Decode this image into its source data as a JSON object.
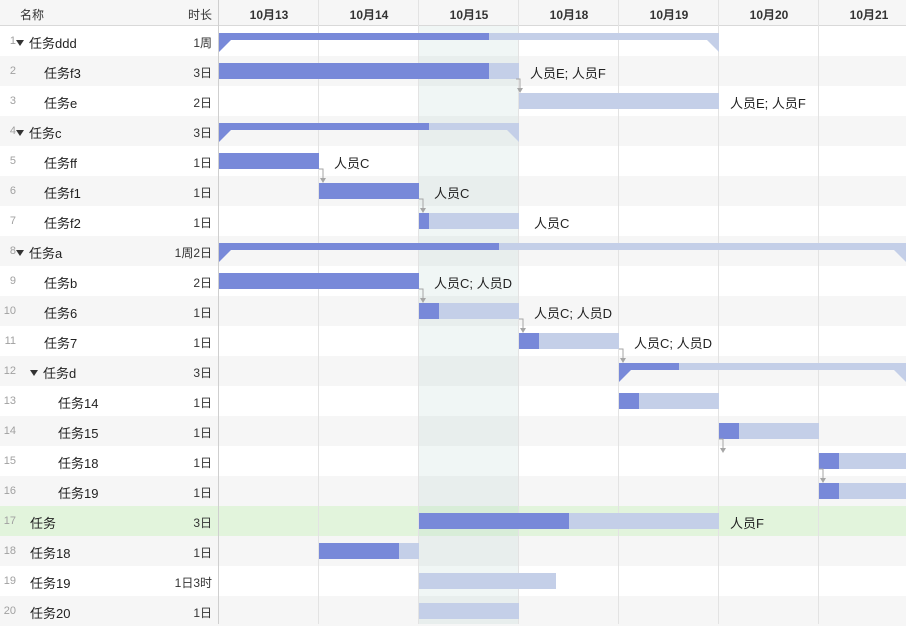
{
  "header": {
    "name_label": "名称",
    "duration_label": "时长",
    "days": [
      "10月13",
      "10月14",
      "10月15",
      "10月18",
      "10月19",
      "10月20",
      "10月21"
    ]
  },
  "colors": {
    "bar_done": "#7889d9",
    "bar_todo": "#c4cfe8",
    "row_alt": "#f6f6f6",
    "row_highlight": "#e2f4dc",
    "today_column": "#e8f2f0",
    "dependency_line": "#a6a6a6"
  },
  "tasks": [
    {
      "num": "1",
      "name": "任务ddd",
      "duration": "1周",
      "group": true,
      "level": 0
    },
    {
      "num": "2",
      "name": "任务f3",
      "duration": "3日",
      "level": 1,
      "resources": "人员E; 人员F"
    },
    {
      "num": "3",
      "name": "任务e",
      "duration": "2日",
      "level": 1,
      "resources": "人员E; 人员F"
    },
    {
      "num": "4",
      "name": "任务c",
      "duration": "3日",
      "group": true,
      "level": 0
    },
    {
      "num": "5",
      "name": "任务ff",
      "duration": "1日",
      "level": 1,
      "resources": "人员C"
    },
    {
      "num": "6",
      "name": "任务f1",
      "duration": "1日",
      "level": 1,
      "resources": "人员C"
    },
    {
      "num": "7",
      "name": "任务f2",
      "duration": "1日",
      "level": 1,
      "resources": "人员C"
    },
    {
      "num": "8",
      "name": "任务a",
      "duration": "1周2日",
      "group": true,
      "level": 0
    },
    {
      "num": "9",
      "name": "任务b",
      "duration": "2日",
      "level": 1,
      "resources": "人员C; 人员D"
    },
    {
      "num": "10",
      "name": "任务6",
      "duration": "1日",
      "level": 1,
      "resources": "人员C; 人员D"
    },
    {
      "num": "11",
      "name": "任务7",
      "duration": "1日",
      "level": 1,
      "resources": "人员C; 人员D"
    },
    {
      "num": "12",
      "name": "任务d",
      "duration": "3日",
      "group": true,
      "level": 1
    },
    {
      "num": "13",
      "name": "任务14",
      "duration": "1日",
      "level": 2
    },
    {
      "num": "14",
      "name": "任务15",
      "duration": "1日",
      "level": 2
    },
    {
      "num": "15",
      "name": "任务18",
      "duration": "1日",
      "level": 2
    },
    {
      "num": "16",
      "name": "任务19",
      "duration": "1日",
      "level": 2
    },
    {
      "num": "17",
      "name": "任务",
      "duration": "3日",
      "level": -1,
      "resources": "人员F",
      "selected": true
    },
    {
      "num": "18",
      "name": "任务18",
      "duration": "1日",
      "level": -1
    },
    {
      "num": "19",
      "name": "任务19",
      "duration": "1日3时",
      "level": -1
    },
    {
      "num": "20",
      "name": "任务20",
      "duration": "1日",
      "level": -1
    }
  ]
}
